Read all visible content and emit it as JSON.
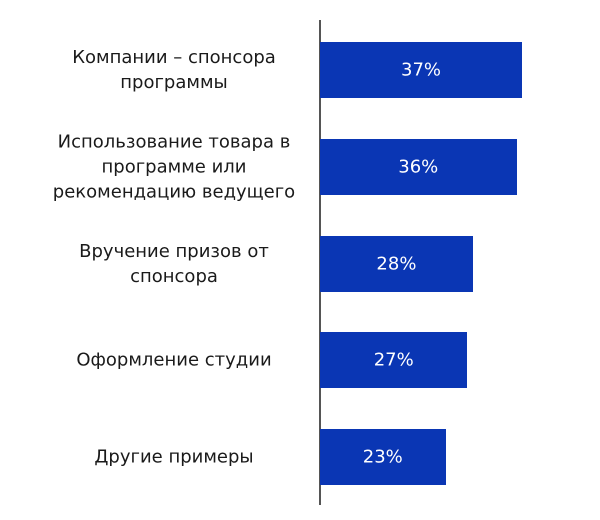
{
  "chart_data": {
    "type": "bar",
    "orientation": "horizontal",
    "categories": [
      "Компании – спонсора программы",
      "Использование товара в программе или рекомендацию ведущего",
      "Вручение призов от спонсора",
      "Оформление студии",
      "Другие примеры"
    ],
    "values": [
      37,
      36,
      28,
      27,
      23
    ],
    "value_labels": [
      "37%",
      "36%",
      "28%",
      "27%",
      "23%"
    ],
    "color": "#0a36b4"
  }
}
